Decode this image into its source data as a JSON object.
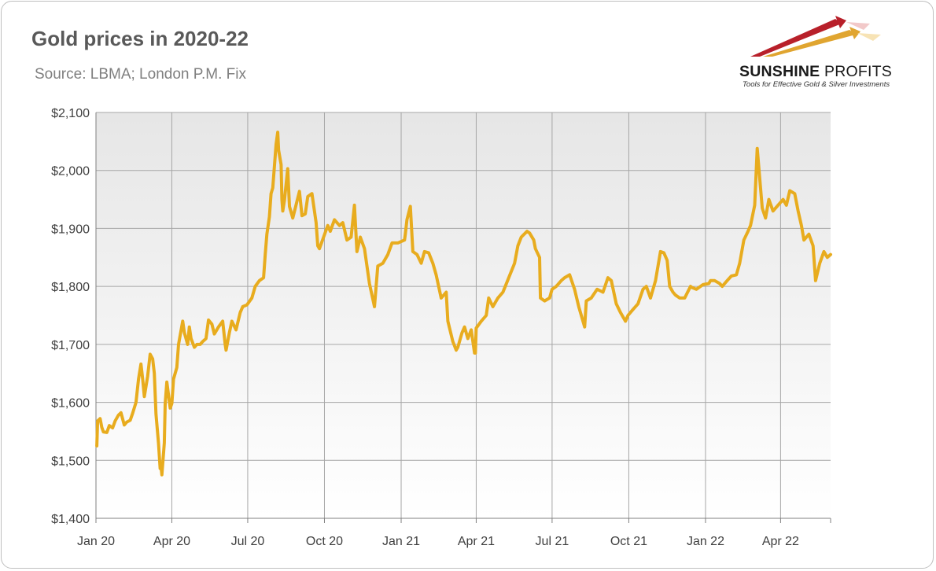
{
  "header": {
    "title": "Gold prices in 2020-22",
    "subtitle": "Source: LBMA; London P.M. Fix"
  },
  "logo": {
    "name_part1": "SUNSHINE",
    "name_part2": "PROFITS",
    "tagline": "Tools for Effective Gold & Silver Investments"
  },
  "colors": {
    "line": "#e8ac1e",
    "plot_background_top": "#e6e6e6",
    "plot_background_bottom": "#ffffff",
    "grid": "#a6a6a6",
    "logo_red": "#b8202a",
    "logo_gold": "#e0a530"
  },
  "chart_data": {
    "type": "line",
    "title": "Gold prices in 2020-22",
    "subtitle": "Source: LBMA; London P.M. Fix",
    "xlabel": "",
    "ylabel": "",
    "ylim": [
      1400,
      2100
    ],
    "yticks": [
      1400,
      1500,
      1600,
      1700,
      1800,
      1900,
      2000,
      2100
    ],
    "ytick_labels": [
      "$1,400",
      "$1,500",
      "$1,600",
      "$1,700",
      "$1,800",
      "$1,900",
      "$2,000",
      "$2,100"
    ],
    "xlim": [
      "2020-01-01",
      "2022-05-31"
    ],
    "xticks": [
      "2020-01-01",
      "2020-04-01",
      "2020-07-01",
      "2020-10-01",
      "2021-01-01",
      "2021-04-01",
      "2021-07-01",
      "2021-10-01",
      "2022-01-01",
      "2022-04-01"
    ],
    "xtick_labels": [
      "Jan 20",
      "Apr 20",
      "Jul 20",
      "Oct 20",
      "Jan 21",
      "Apr 21",
      "Jul 21",
      "Oct 21",
      "Jan 22",
      "Apr 22"
    ],
    "grid": true,
    "legend": "none",
    "series": [
      {
        "x": [
          "2020-01-02",
          "2020-01-03",
          "2020-01-06",
          "2020-01-08",
          "2020-01-10",
          "2020-01-14",
          "2020-01-17",
          "2020-01-21",
          "2020-01-24",
          "2020-01-28",
          "2020-01-31",
          "2020-02-04",
          "2020-02-07",
          "2020-02-11",
          "2020-02-14",
          "2020-02-18",
          "2020-02-21",
          "2020-02-24",
          "2020-02-26",
          "2020-02-28",
          "2020-03-03",
          "2020-03-06",
          "2020-03-09",
          "2020-03-11",
          "2020-03-13",
          "2020-03-16",
          "2020-03-18",
          "2020-03-19",
          "2020-03-20",
          "2020-03-23",
          "2020-03-24",
          "2020-03-26",
          "2020-03-30",
          "2020-04-01",
          "2020-04-03",
          "2020-04-07",
          "2020-04-09",
          "2020-04-14",
          "2020-04-16",
          "2020-04-20",
          "2020-04-22",
          "2020-04-24",
          "2020-04-28",
          "2020-05-01",
          "2020-05-05",
          "2020-05-08",
          "2020-05-12",
          "2020-05-15",
          "2020-05-19",
          "2020-05-22",
          "2020-05-27",
          "2020-06-01",
          "2020-06-04",
          "2020-06-05",
          "2020-06-09",
          "2020-06-12",
          "2020-06-17",
          "2020-06-22",
          "2020-06-25",
          "2020-06-30",
          "2020-07-06",
          "2020-07-10",
          "2020-07-15",
          "2020-07-20",
          "2020-07-22",
          "2020-07-24",
          "2020-07-27",
          "2020-07-29",
          "2020-07-31",
          "2020-08-04",
          "2020-08-06",
          "2020-08-07",
          "2020-08-10",
          "2020-08-11",
          "2020-08-12",
          "2020-08-14",
          "2020-08-18",
          "2020-08-20",
          "2020-08-24",
          "2020-08-27",
          "2020-09-01",
          "2020-09-04",
          "2020-09-08",
          "2020-09-11",
          "2020-09-16",
          "2020-09-21",
          "2020-09-23",
          "2020-09-25",
          "2020-09-30",
          "2020-10-05",
          "2020-10-08",
          "2020-10-13",
          "2020-10-19",
          "2020-10-23",
          "2020-10-28",
          "2020-11-02",
          "2020-11-06",
          "2020-11-09",
          "2020-11-13",
          "2020-11-18",
          "2020-11-24",
          "2020-11-30",
          "2020-12-04",
          "2020-12-10",
          "2020-12-16",
          "2020-12-21",
          "2020-12-28",
          "2021-01-05",
          "2021-01-06",
          "2021-01-08",
          "2021-01-12",
          "2021-01-15",
          "2021-01-20",
          "2021-01-25",
          "2021-01-29",
          "2021-02-03",
          "2021-02-08",
          "2021-02-12",
          "2021-02-18",
          "2021-02-24",
          "2021-02-26",
          "2021-03-04",
          "2021-03-08",
          "2021-03-10",
          "2021-03-15",
          "2021-03-18",
          "2021-03-22",
          "2021-03-26",
          "2021-03-30",
          "2021-03-31",
          "2021-04-01",
          "2021-04-07",
          "2021-04-13",
          "2021-04-16",
          "2021-04-21",
          "2021-04-27",
          "2021-05-03",
          "2021-05-10",
          "2021-05-17",
          "2021-05-21",
          "2021-05-25",
          "2021-06-01",
          "2021-06-04",
          "2021-06-09",
          "2021-06-11",
          "2021-06-16",
          "2021-06-17",
          "2021-06-22",
          "2021-06-28",
          "2021-07-01",
          "2021-07-06",
          "2021-07-12",
          "2021-07-16",
          "2021-07-22",
          "2021-07-28",
          "2021-08-02",
          "2021-08-06",
          "2021-08-09",
          "2021-08-11",
          "2021-08-17",
          "2021-08-24",
          "2021-08-31",
          "2021-09-06",
          "2021-09-10",
          "2021-09-16",
          "2021-09-21",
          "2021-09-27",
          "2021-09-30",
          "2021-10-06",
          "2021-10-12",
          "2021-10-18",
          "2021-10-22",
          "2021-10-27",
          "2021-11-02",
          "2021-11-08",
          "2021-11-12",
          "2021-11-16",
          "2021-11-19",
          "2021-11-23",
          "2021-11-26",
          "2021-12-01",
          "2021-12-07",
          "2021-12-14",
          "2021-12-16",
          "2021-12-21",
          "2021-12-29",
          "2022-01-05",
          "2022-01-07",
          "2022-01-12",
          "2022-01-18",
          "2022-01-21",
          "2022-01-27",
          "2022-02-01",
          "2022-02-07",
          "2022-02-11",
          "2022-02-16",
          "2022-02-21",
          "2022-02-24",
          "2022-03-01",
          "2022-03-04",
          "2022-03-08",
          "2022-03-10",
          "2022-03-14",
          "2022-03-18",
          "2022-03-23",
          "2022-03-29",
          "2022-04-04",
          "2022-04-08",
          "2022-04-12",
          "2022-04-18",
          "2022-04-22",
          "2022-04-26",
          "2022-04-29",
          "2022-05-05",
          "2022-05-10",
          "2022-05-13",
          "2022-05-18",
          "2022-05-23",
          "2022-05-27",
          "2022-05-31"
        ],
        "y": [
          1525,
          1568,
          1572,
          1557,
          1549,
          1548,
          1560,
          1556,
          1568,
          1578,
          1582,
          1561,
          1566,
          1569,
          1581,
          1600,
          1640,
          1666,
          1640,
          1610,
          1645,
          1683,
          1675,
          1650,
          1580,
          1530,
          1486,
          1490,
          1475,
          1530,
          1597,
          1635,
          1590,
          1598,
          1640,
          1660,
          1700,
          1740,
          1720,
          1700,
          1730,
          1710,
          1695,
          1700,
          1700,
          1705,
          1710,
          1742,
          1735,
          1718,
          1730,
          1740,
          1700,
          1690,
          1720,
          1740,
          1725,
          1755,
          1765,
          1768,
          1780,
          1800,
          1810,
          1815,
          1855,
          1890,
          1920,
          1960,
          1970,
          2045,
          2066,
          2035,
          2010,
          1950,
          1930,
          1948,
          2003,
          1938,
          1918,
          1935,
          1964,
          1922,
          1925,
          1955,
          1960,
          1910,
          1870,
          1865,
          1885,
          1905,
          1895,
          1915,
          1905,
          1910,
          1880,
          1885,
          1940,
          1860,
          1885,
          1865,
          1805,
          1765,
          1835,
          1840,
          1855,
          1875,
          1875,
          1880,
          1890,
          1915,
          1938,
          1860,
          1855,
          1840,
          1860,
          1858,
          1840,
          1820,
          1780,
          1790,
          1740,
          1705,
          1690,
          1695,
          1720,
          1730,
          1710,
          1725,
          1685,
          1685,
          1728,
          1740,
          1750,
          1780,
          1765,
          1780,
          1790,
          1815,
          1840,
          1870,
          1885,
          1895,
          1892,
          1880,
          1865,
          1850,
          1780,
          1775,
          1780,
          1795,
          1800,
          1810,
          1815,
          1820,
          1795,
          1765,
          1745,
          1730,
          1775,
          1780,
          1795,
          1790,
          1815,
          1810,
          1770,
          1755,
          1740,
          1750,
          1760,
          1770,
          1795,
          1800,
          1780,
          1810,
          1860,
          1858,
          1845,
          1800,
          1790,
          1785,
          1780,
          1780,
          1800,
          1798,
          1795,
          1803,
          1805,
          1810,
          1810,
          1805,
          1800,
          1810,
          1818,
          1820,
          1840,
          1880,
          1895,
          1905,
          1940,
          2038,
          1970,
          1935,
          1918,
          1950,
          1930,
          1940,
          1950,
          1940,
          1965,
          1960,
          1930,
          1905,
          1880,
          1890,
          1870,
          1810,
          1840,
          1860,
          1850,
          1855
        ]
      }
    ]
  }
}
